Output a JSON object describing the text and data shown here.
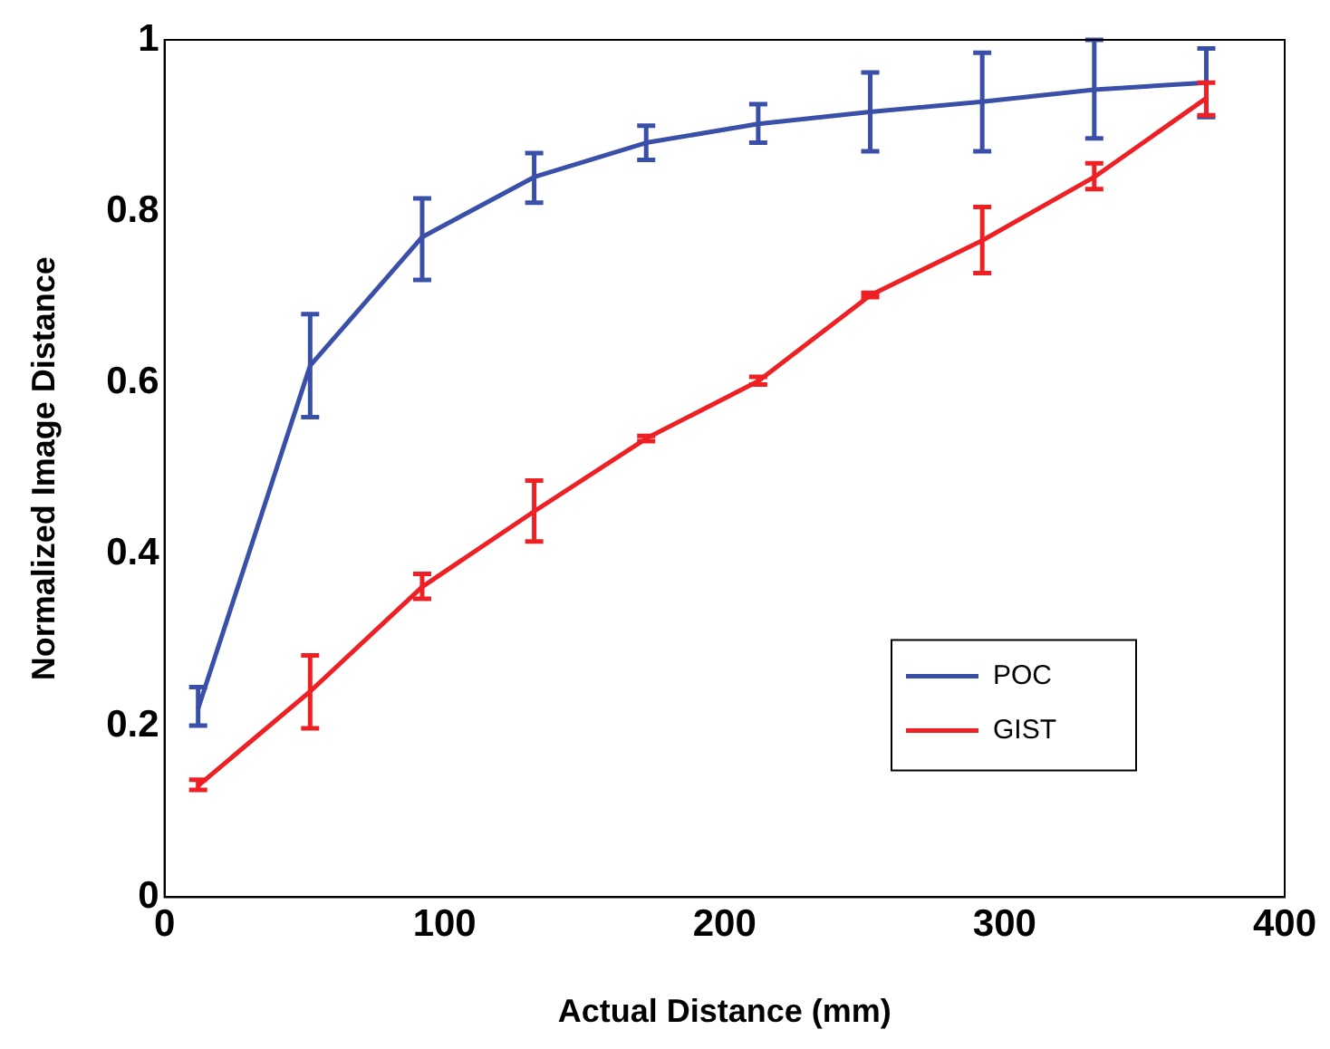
{
  "chart_data": {
    "type": "line",
    "xlabel": "Actual Distance (mm)",
    "ylabel": "Normalized Image Distance",
    "x": [
      12,
      52,
      92,
      132,
      172,
      212,
      252,
      292,
      332,
      372
    ],
    "series": [
      {
        "name": "POC",
        "color": "#3a4fa8",
        "values": [
          0.22,
          0.62,
          0.77,
          0.84,
          0.88,
          0.902,
          0.916,
          0.928,
          0.942,
          0.95
        ],
        "errors": [
          [
            0.2,
            0.245
          ],
          [
            0.56,
            0.68
          ],
          [
            0.72,
            0.815
          ],
          [
            0.81,
            0.868
          ],
          [
            0.86,
            0.9
          ],
          [
            0.88,
            0.925
          ],
          [
            0.87,
            0.962
          ],
          [
            0.87,
            0.985
          ],
          [
            0.885,
            1.0
          ],
          [
            0.91,
            0.99
          ]
        ]
      },
      {
        "name": "GIST",
        "color": "#ee2024",
        "values": [
          0.13,
          0.24,
          0.362,
          0.45,
          0.535,
          0.602,
          0.702,
          0.766,
          0.84,
          0.932
        ],
        "errors": [
          [
            0.125,
            0.137
          ],
          [
            0.197,
            0.282
          ],
          [
            0.348,
            0.377
          ],
          [
            0.415,
            0.486
          ],
          [
            0.532,
            0.538
          ],
          [
            0.598,
            0.607
          ],
          [
            0.7,
            0.705
          ],
          [
            0.728,
            0.805
          ],
          [
            0.826,
            0.856
          ],
          [
            0.912,
            0.95
          ]
        ]
      }
    ],
    "xlim": [
      0,
      400
    ],
    "xticks": [
      0,
      100,
      200,
      300,
      400
    ],
    "ylim": [
      0,
      1
    ],
    "yticks": [
      0,
      0.2,
      0.4,
      0.6,
      0.8,
      1
    ],
    "grid": false,
    "legend": "bottom right",
    "marker": "none",
    "line_style": "solid"
  }
}
